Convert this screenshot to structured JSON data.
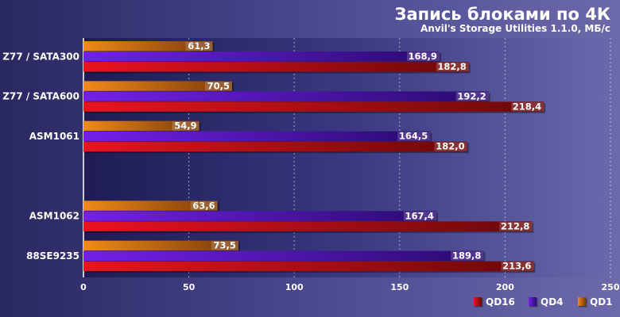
{
  "chart_data": {
    "type": "bar",
    "orientation": "horizontal",
    "title": "Запись блоками по 4К",
    "subtitle": "Anvil's Storage Utilities 1.1.0, МБ/с",
    "categories": [
      "Z77 / SATA300",
      "Z77 / SATA600",
      "ASM1061",
      "",
      "ASM1062",
      "88SE9235"
    ],
    "series": [
      {
        "name": "QD1",
        "color": "#e07a10",
        "values": [
          61.3,
          70.5,
          54.9,
          null,
          63.6,
          73.5
        ]
      },
      {
        "name": "QD4",
        "color": "#6a1ad8",
        "values": [
          168.9,
          192.2,
          164.5,
          null,
          167.4,
          189.8
        ]
      },
      {
        "name": "QD16",
        "color": "#d8101a",
        "values": [
          182.8,
          218.4,
          182.0,
          null,
          212.8,
          213.6
        ]
      }
    ],
    "data_labels": [
      [
        "61,3",
        "70,5",
        "54,9",
        "",
        "63,6",
        "73,5"
      ],
      [
        "168,9",
        "192,2",
        "164,5",
        "",
        "167,4",
        "189,8"
      ],
      [
        "182,8",
        "218,4",
        "182,0",
        "",
        "212,8",
        "213,6"
      ]
    ],
    "xlim": [
      0,
      250
    ],
    "xticks": [
      0,
      50,
      100,
      150,
      200,
      250
    ],
    "xtick_labels": [
      "0",
      "50",
      "100",
      "150",
      "200",
      "250"
    ],
    "grid": true,
    "legend": {
      "placement": "bottom-right",
      "order": [
        "QD16",
        "QD4",
        "QD1"
      ]
    }
  }
}
